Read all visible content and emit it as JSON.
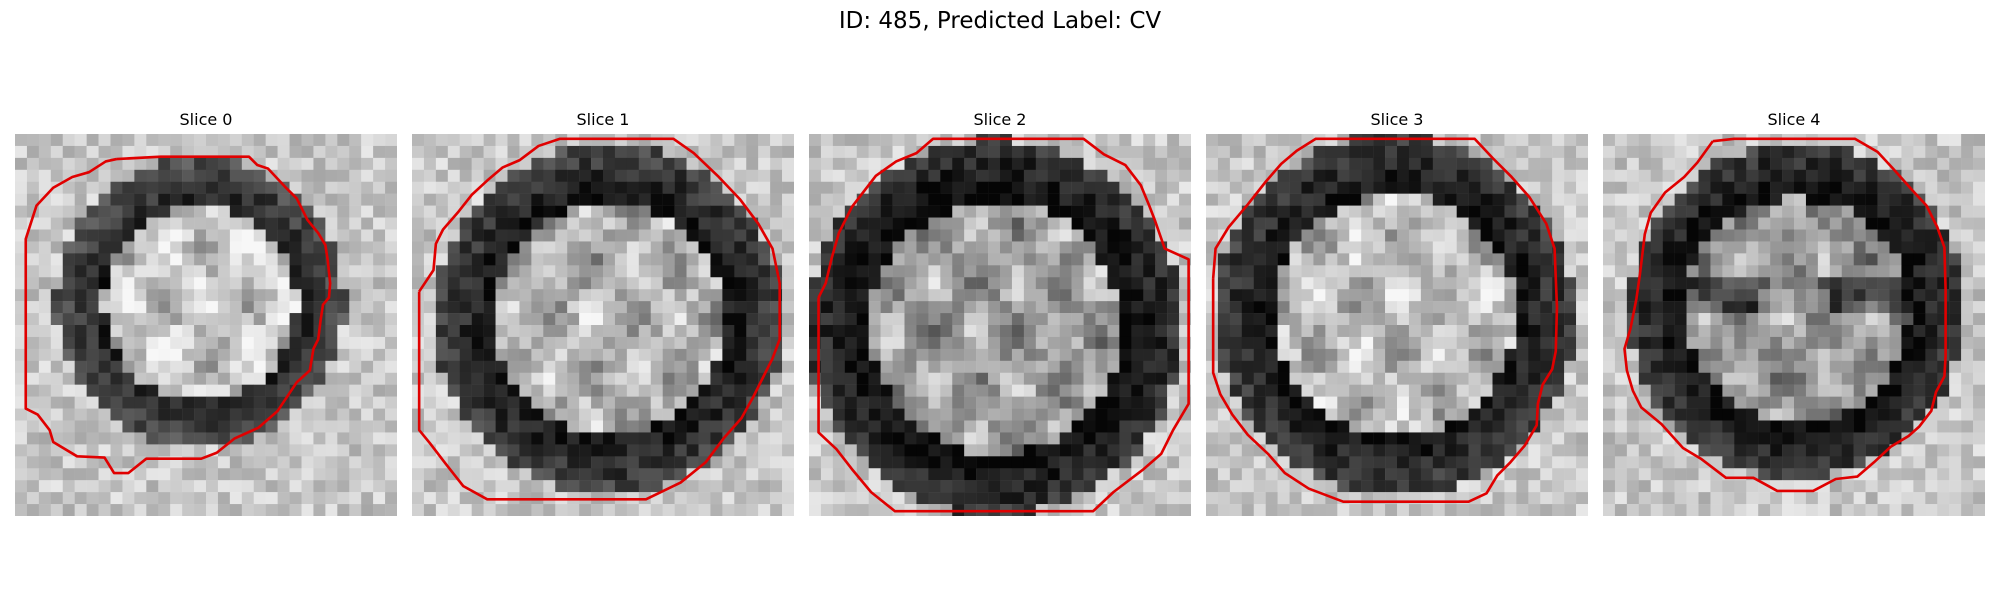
{
  "figure": {
    "title": "ID: 485, Predicted Label: CV"
  },
  "panels": [
    {
      "title": "Slice 0",
      "image": "grayscale-microscopy-slice-with-red-contour"
    },
    {
      "title": "Slice 1",
      "image": "grayscale-microscopy-slice-with-red-contour"
    },
    {
      "title": "Slice 2",
      "image": "grayscale-microscopy-slice-with-red-contour"
    },
    {
      "title": "Slice 3",
      "image": "grayscale-microscopy-slice-with-red-contour"
    },
    {
      "title": "Slice 4",
      "image": "grayscale-microscopy-slice-with-red-contour"
    }
  ],
  "colors": {
    "contour": "#e00000",
    "background": "#ffffff"
  }
}
